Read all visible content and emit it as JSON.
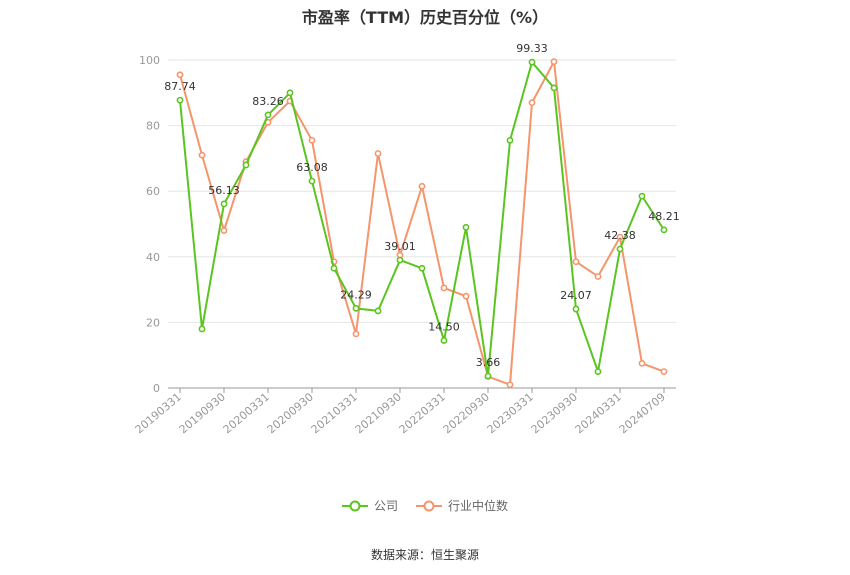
{
  "chart_data": {
    "type": "line",
    "title": "市盈率（TTM）历史百分位（%）",
    "xlabel": "",
    "ylabel": "",
    "ylim": [
      0,
      100
    ],
    "y_ticks": [
      0,
      20,
      40,
      60,
      80,
      100
    ],
    "grid": true,
    "legend_position": "bottom",
    "x": [
      "20190331",
      "20190630",
      "20190930",
      "20191231",
      "20200331",
      "20200630",
      "20200930",
      "20201231",
      "20210331",
      "20210630",
      "20210930",
      "20211231",
      "20220331",
      "20220630",
      "20220930",
      "20221231",
      "20230331",
      "20230630",
      "20230930",
      "20231231",
      "20240331",
      "20240630",
      "20240709"
    ],
    "x_tick_labels": [
      "20190331",
      "20190930",
      "20200331",
      "20200930",
      "20210331",
      "20210930",
      "20220331",
      "20220930",
      "20230331",
      "20230930",
      "20240331",
      "20240709"
    ],
    "series": [
      {
        "name": "公司",
        "color": "#5ac421",
        "values": [
          87.74,
          18,
          56.13,
          68,
          83.26,
          90,
          63.08,
          36.5,
          24.29,
          23.5,
          39.01,
          36.5,
          14.5,
          49,
          3.66,
          75.5,
          99.33,
          91.5,
          24.07,
          5,
          42.38,
          58.5,
          48.21
        ],
        "labels": {
          "0": "87.74",
          "2": "56.13",
          "4": "83.26",
          "6": "63.08",
          "8": "24.29",
          "10": "39.01",
          "12": "14.50",
          "14": "3.66",
          "16": "99.33",
          "18": "24.07",
          "20": "42.38",
          "22": "48.21"
        }
      },
      {
        "name": "行业中位数",
        "color": "#f5956b",
        "values": [
          95.5,
          71,
          48,
          69,
          81,
          87.5,
          75.5,
          38.5,
          16.5,
          71.5,
          40.5,
          61.5,
          30.5,
          28,
          3.5,
          1,
          87,
          99.5,
          38.5,
          34,
          46,
          7.5,
          5
        ]
      }
    ]
  },
  "source_text": "数据来源：恒生聚源"
}
